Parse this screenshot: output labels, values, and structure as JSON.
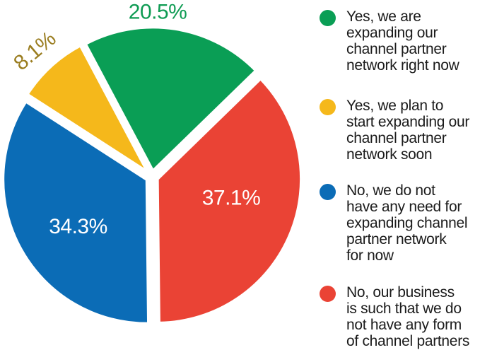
{
  "chart_data": {
    "type": "pie",
    "title": "",
    "unit": "percent",
    "background": "#FFFFFF",
    "legend_position": "right",
    "legend_text_color": "#1B1B1B",
    "start_angle_deg": -28,
    "clockwise_order_from_top": [
      "green",
      "red",
      "blue",
      "yellow"
    ],
    "slices": [
      {
        "id": "green",
        "value": 20.5,
        "display_label": "20.5%",
        "color": "#0A9E55",
        "value_label_color": "#0E9B53",
        "value_label_placement": "outside",
        "legend_label": "Yes, we are\nexpanding our\nchannel partner\nnetwork right now"
      },
      {
        "id": "yellow",
        "value": 8.1,
        "display_label": "8.1%",
        "color": "#F5B81B",
        "value_label_color": "#9A7D20",
        "value_label_placement": "outside-rotated",
        "legend_label": "Yes, we plan to\nstart expanding our\nchannel partner\nnetwork soon"
      },
      {
        "id": "blue",
        "value": 34.3,
        "display_label": "34.3%",
        "color": "#0B6CB6",
        "value_label_color": "#FFFFFF",
        "value_label_placement": "inside",
        "legend_label": "No, we do not\nhave any need for\nexpanding channel\npartner network\nfor now"
      },
      {
        "id": "red",
        "value": 37.1,
        "display_label": "37.1%",
        "color": "#EA4335",
        "value_label_color": "#FFFFFF",
        "value_label_placement": "inside",
        "legend_label": "No, our business\nis such that we do\nnot have any form\nof channel partners"
      }
    ]
  }
}
